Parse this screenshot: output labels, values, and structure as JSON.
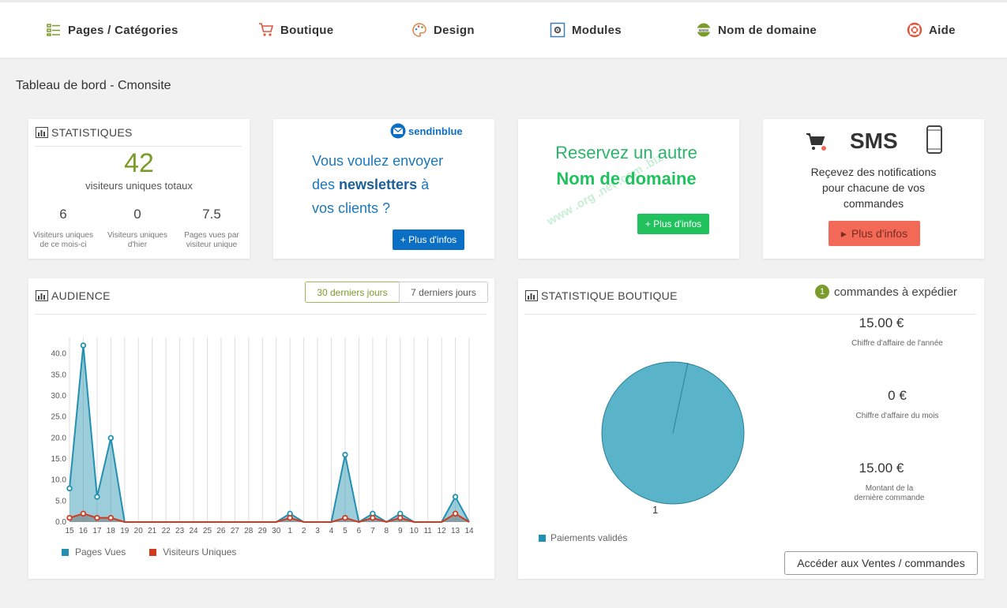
{
  "nav": [
    {
      "label": "Pages / Catégories",
      "icon": "list-icon"
    },
    {
      "label": "Boutique",
      "icon": "cart-icon"
    },
    {
      "label": "Design",
      "icon": "palette-icon"
    },
    {
      "label": "Modules",
      "icon": "gear-box-icon"
    },
    {
      "label": "Nom de domaine",
      "icon": "www-icon"
    },
    {
      "label": "Aide",
      "icon": "lifebuoy-icon"
    }
  ],
  "page_title": "Tableau de bord - Cmonsite",
  "stats": {
    "title": "STATISTIQUES",
    "total": "42",
    "total_label": "visiteurs uniques totaux",
    "items": [
      {
        "value": "6",
        "label": "Visiteurs uniques de ce mois-ci"
      },
      {
        "value": "0",
        "label": "Visiteurs uniques d'hier"
      },
      {
        "value": "7.5",
        "label": "Pages vues par visiteur unique"
      }
    ]
  },
  "newsletter": {
    "brand": "sendinblue",
    "line1": "Vous voulez envoyer",
    "line2_pre": "des ",
    "line2_bold": "newsletters",
    "line2_post": " à",
    "line3": "vos clients ?",
    "button": "+ Plus d'infos"
  },
  "domain": {
    "line1": "Reservez un autre",
    "line2": "Nom de domaine",
    "button": "+ Plus d'infos",
    "watermark": "www .org .net .com .biz"
  },
  "sms": {
    "title": "SMS",
    "line1": "Reçevez des notifications",
    "line2": "pour chacune de vos",
    "line3": "commandes",
    "button": "Plus d'infos"
  },
  "audience": {
    "title": "AUDIENCE",
    "tabs": [
      "30 derniers jours",
      "7 derniers jours"
    ],
    "legend": [
      "Pages Vues",
      "Visiteurs Uniques"
    ]
  },
  "boutique": {
    "title": "STATISTIQUE BOUTIQUE",
    "orders_count": "1",
    "orders_label": "commandes à expédier",
    "kpis": [
      {
        "value": "15.00 €",
        "label": "Chiffre d'affaire de l'année"
      },
      {
        "value": "0 €",
        "label": "Chiffre d'affaire du mois"
      },
      {
        "value": "15.00 €",
        "label": "Montant de la dernière commande"
      }
    ],
    "pie_label": "1",
    "legend": "Paiements validés",
    "button": "Accéder aux Ventes / commandes"
  },
  "chart_data": [
    {
      "type": "area",
      "title": "",
      "categories": [
        "15",
        "16",
        "17",
        "18",
        "19",
        "20",
        "21",
        "22",
        "23",
        "24",
        "25",
        "26",
        "27",
        "28",
        "29",
        "30",
        "1",
        "2",
        "3",
        "4",
        "5",
        "6",
        "7",
        "8",
        "9",
        "10",
        "11",
        "12",
        "13",
        "14"
      ],
      "ylim": [
        0,
        45
      ],
      "yticks": [
        "0.0",
        "5.0",
        "10.0",
        "15.0",
        "20.0",
        "25.0",
        "30.0",
        "35.0",
        "40.0"
      ],
      "series": [
        {
          "name": "Pages Vues",
          "color": "#2290b0",
          "values": [
            8,
            42,
            6,
            20,
            0,
            0,
            0,
            0,
            0,
            0,
            0,
            0,
            0,
            0,
            0,
            0,
            2,
            0,
            0,
            0,
            16,
            0,
            2,
            0,
            2,
            0,
            0,
            0,
            6,
            0
          ]
        },
        {
          "name": "Visiteurs Uniques",
          "color": "#d13a1e",
          "values": [
            1,
            2,
            1,
            1,
            0,
            0,
            0,
            0,
            0,
            0,
            0,
            0,
            0,
            0,
            0,
            0,
            1,
            0,
            0,
            0,
            1,
            0,
            1,
            0,
            1,
            0,
            0,
            0,
            2,
            0
          ]
        }
      ]
    },
    {
      "type": "pie",
      "title": "",
      "categories": [
        "Paiements validés"
      ],
      "values": [
        1
      ],
      "colors": [
        "#5ab4c9"
      ]
    }
  ],
  "colors": {
    "accent_green": "#7b9c2a",
    "blue_btn": "#0b6fc5",
    "green_btn": "#21c25e",
    "red_btn": "#f26a57"
  }
}
